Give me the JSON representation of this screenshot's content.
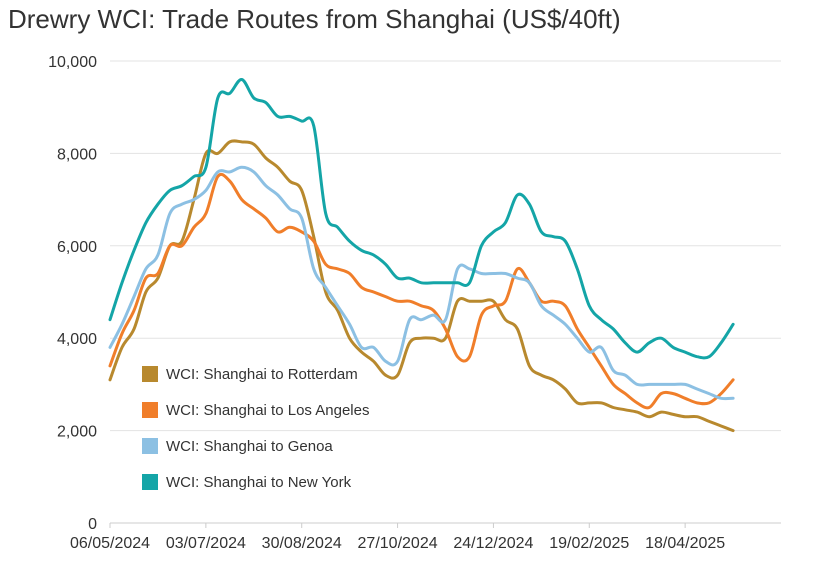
{
  "chart_data": {
    "type": "line",
    "title": "Drewry WCI: Trade Routes from Shanghai (US$/40ft)",
    "xlabel": "",
    "ylabel": "",
    "ylim": [
      0,
      10000
    ],
    "y_ticks": [
      0,
      2000,
      4000,
      6000,
      8000,
      10000
    ],
    "y_tick_labels": [
      "0",
      "2,000",
      "4,000",
      "6,000",
      "8,000",
      "10,000"
    ],
    "x_tick_labels": [
      "06/05/2024",
      "03/07/2024",
      "30/08/2024",
      "27/10/2024",
      "24/12/2024",
      "19/02/2025",
      "18/04/2025"
    ],
    "x_tick_weeks": [
      0,
      8,
      16,
      24,
      32,
      40,
      48
    ],
    "x_week_range": [
      0,
      56
    ],
    "grid": true,
    "legend_position": "bottom-left",
    "series": [
      {
        "name": "WCI: Shanghai to Rotterdam",
        "color": "#B8892E",
        "values": [
          3100,
          3800,
          4200,
          5000,
          5300,
          6000,
          6100,
          7000,
          8000,
          8000,
          8250,
          8250,
          8200,
          7900,
          7700,
          7400,
          7200,
          6200,
          5000,
          4600,
          4000,
          3700,
          3500,
          3200,
          3200,
          3900,
          4000,
          4000,
          4000,
          4800,
          4800,
          4800,
          4800,
          4400,
          4200,
          3400,
          3200,
          3100,
          2900,
          2600,
          2600,
          2600,
          2500,
          2450,
          2400,
          2300,
          2400,
          2350,
          2300,
          2300,
          2200,
          2100,
          2000
        ]
      },
      {
        "name": "WCI: Shanghai to Los Angeles",
        "color": "#F07E2A",
        "values": [
          3400,
          4100,
          4600,
          5300,
          5400,
          6000,
          6000,
          6400,
          6700,
          7500,
          7400,
          7000,
          6800,
          6600,
          6300,
          6400,
          6300,
          6100,
          5600,
          5500,
          5400,
          5100,
          5000,
          4900,
          4800,
          4800,
          4700,
          4600,
          4200,
          3600,
          3600,
          4500,
          4700,
          4800,
          5500,
          5200,
          4800,
          4800,
          4700,
          4200,
          3800,
          3400,
          3000,
          2800,
          2600,
          2500,
          2800,
          2800,
          2700,
          2600,
          2600,
          2800,
          3100
        ]
      },
      {
        "name": "WCI: Shanghai to Genoa",
        "color": "#8CC0E3",
        "values": [
          3800,
          4300,
          4900,
          5500,
          5800,
          6700,
          6900,
          7000,
          7200,
          7600,
          7600,
          7700,
          7600,
          7300,
          7100,
          6800,
          6600,
          5500,
          5100,
          4700,
          4300,
          3800,
          3800,
          3500,
          3500,
          4400,
          4400,
          4500,
          4400,
          5500,
          5500,
          5400,
          5400,
          5400,
          5300,
          5200,
          4700,
          4500,
          4300,
          4000,
          3700,
          3800,
          3300,
          3200,
          3000,
          3000,
          3000,
          3000,
          3000,
          2900,
          2800,
          2700,
          2700
        ]
      },
      {
        "name": "WCI: Shanghai to New York",
        "color": "#14A5A7",
        "values": [
          4400,
          5200,
          5900,
          6500,
          6900,
          7200,
          7300,
          7500,
          7700,
          9200,
          9300,
          9600,
          9200,
          9100,
          8800,
          8800,
          8700,
          8600,
          6700,
          6400,
          6100,
          5900,
          5800,
          5600,
          5300,
          5300,
          5200,
          5200,
          5200,
          5200,
          5200,
          6000,
          6300,
          6500,
          7100,
          6900,
          6300,
          6200,
          6100,
          5500,
          4700,
          4400,
          4200,
          3900,
          3700,
          3900,
          4000,
          3800,
          3700,
          3600,
          3600,
          3900,
          4300
        ]
      }
    ]
  }
}
